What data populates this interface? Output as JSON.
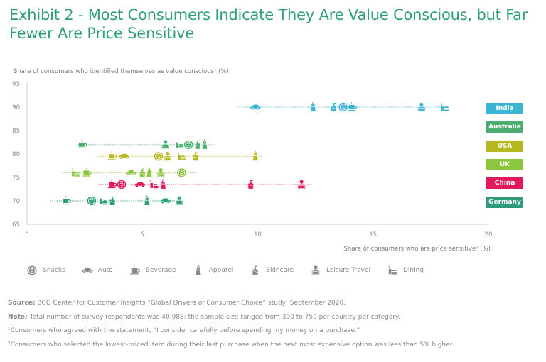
{
  "title": "Exhibit 2 - Most Consumers Indicate They Are Value Conscious, but Far Fewer Are Price Sensitive",
  "chart_data": {
    "type": "scatter",
    "title": "Exhibit 2 - Most Consumers Indicate They Are Value Conscious, but Far Fewer Are Price Sensitive",
    "xlabel": "Share of consumers who are price sensitive² (%)",
    "ylabel": "Share of consumers who identified themselves as value conscious¹ (%)",
    "xlim": [
      0,
      20
    ],
    "ylim": [
      65,
      95
    ],
    "xticks": [
      "0",
      "5",
      "10",
      "15",
      "20"
    ],
    "yticks": [
      "95",
      "90",
      "85",
      "80",
      "75",
      "70",
      "65"
    ],
    "grid": false,
    "legend_position": "bottom",
    "categories": [
      "Snacks",
      "Auto",
      "Beverage",
      "Apparel",
      "Skincare",
      "Leisure Travel",
      "Dining"
    ],
    "series": [
      {
        "name": "India",
        "color": "#3bb5d6",
        "y": 90,
        "line_x": [
          9.1,
          18.3
        ],
        "points": [
          {
            "category": "Auto",
            "x": 9.9
          },
          {
            "category": "Apparel",
            "x": 12.4
          },
          {
            "category": "Skincare",
            "x": 13.3
          },
          {
            "category": "Snacks",
            "x": 13.7
          },
          {
            "category": "Beverage",
            "x": 14.1
          },
          {
            "category": "Leisure Travel",
            "x": 17.1
          },
          {
            "category": "Dining",
            "x": 18.1
          }
        ]
      },
      {
        "name": "Australia",
        "color": "#4cae6e",
        "y": 82,
        "line_x": [
          2.2,
          8.2
        ],
        "points": [
          {
            "category": "Beverage",
            "x": 2.4
          },
          {
            "category": "Leisure Travel",
            "x": 6.0
          },
          {
            "category": "Dining",
            "x": 6.6
          },
          {
            "category": "Snacks",
            "x": 7.0
          },
          {
            "category": "Skincare",
            "x": 7.4
          },
          {
            "category": "Apparel",
            "x": 7.7
          }
        ]
      },
      {
        "name": "USA",
        "color": "#b5b81f",
        "y": 79.5,
        "line_x": [
          3.0,
          10.2
        ],
        "points": [
          {
            "category": "Beverage",
            "x": 3.7
          },
          {
            "category": "Auto",
            "x": 4.2
          },
          {
            "category": "Snacks",
            "x": 5.7
          },
          {
            "category": "Leisure Travel",
            "x": 6.1
          },
          {
            "category": "Dining",
            "x": 6.7
          },
          {
            "category": "Skincare",
            "x": 7.3
          },
          {
            "category": "Apparel",
            "x": 9.9
          }
        ]
      },
      {
        "name": "UK",
        "color": "#8cc63f",
        "y": 76,
        "line_x": [
          1.5,
          7.3
        ],
        "points": [
          {
            "category": "Dining",
            "x": 2.1
          },
          {
            "category": "Beverage",
            "x": 2.6
          },
          {
            "category": "Auto",
            "x": 4.5
          },
          {
            "category": "Skincare",
            "x": 5.0
          },
          {
            "category": "Apparel",
            "x": 5.3
          },
          {
            "category": "Leisure Travel",
            "x": 5.8
          },
          {
            "category": "Snacks",
            "x": 6.7
          }
        ]
      },
      {
        "name": "China",
        "color": "#e2195a",
        "y": 73.5,
        "line_x": [
          3.1,
          12.3
        ],
        "points": [
          {
            "category": "Beverage",
            "x": 3.7
          },
          {
            "category": "Snacks",
            "x": 4.1
          },
          {
            "category": "Auto",
            "x": 4.9
          },
          {
            "category": "Dining",
            "x": 5.5
          },
          {
            "category": "Apparel",
            "x": 5.9
          },
          {
            "category": "Skincare",
            "x": 9.7
          },
          {
            "category": "Leisure Travel",
            "x": 11.9
          }
        ]
      },
      {
        "name": "Germany",
        "color": "#2d9c7c",
        "y": 70,
        "line_x": [
          1.0,
          6.8
        ],
        "points": [
          {
            "category": "Beverage",
            "x": 1.7
          },
          {
            "category": "Snacks",
            "x": 2.8
          },
          {
            "category": "Dining",
            "x": 3.3
          },
          {
            "category": "Skincare",
            "x": 3.7
          },
          {
            "category": "Apparel",
            "x": 5.2
          },
          {
            "category": "Auto",
            "x": 6.0
          },
          {
            "category": "Leisure Travel",
            "x": 6.6
          }
        ]
      }
    ]
  },
  "legend": [
    {
      "label": "Snacks",
      "icon": "snacks-icon"
    },
    {
      "label": "Auto",
      "icon": "auto-icon"
    },
    {
      "label": "Beverage",
      "icon": "beverage-icon"
    },
    {
      "label": "Apparel",
      "icon": "apparel-icon"
    },
    {
      "label": "Skincare",
      "icon": "skincare-icon"
    },
    {
      "label": "Leisure Travel",
      "icon": "leisure-travel-icon"
    },
    {
      "label": "Dining",
      "icon": "dining-icon"
    }
  ],
  "legend_color": "#8a8a8a",
  "notes": {
    "source_label": "Source:",
    "source_text": " BCG Center for Customer Insights “Global Drivers of Consumer Choice” study, September 2020.",
    "note_label": "Note:",
    "note_text": " Total number of survey respondents was 40,988; the sample size ranged from 300 to 750 per country per category.",
    "footnote1": "¹Consumers who agreed with the statement, “I consider carefully before spending my money on a purchase.”",
    "footnote2": "²Consumers who selected the lowest-priced item during their last purchase when the next most expensive option was less than 5% higher."
  }
}
